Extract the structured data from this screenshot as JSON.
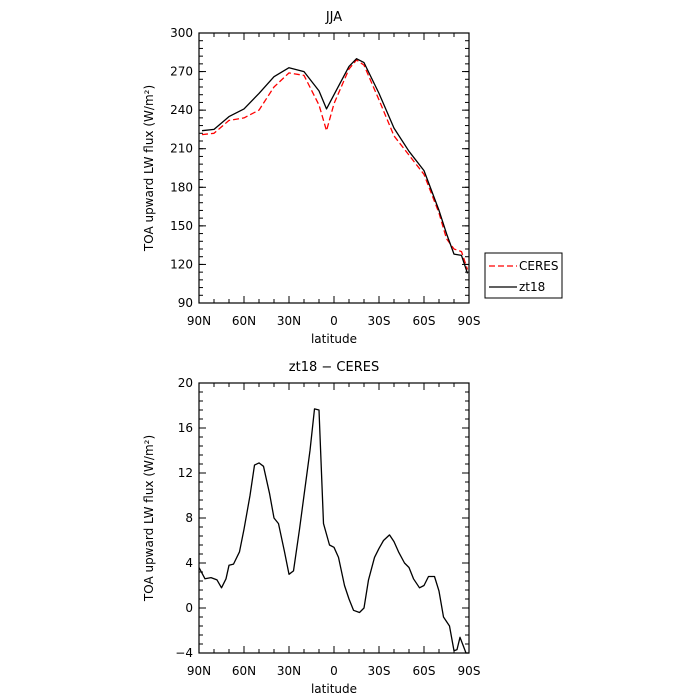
{
  "chart_data": [
    {
      "type": "line",
      "title": "JJA",
      "xlabel": "latitude",
      "ylabel": "TOA upward LW flux (W/m²)",
      "xlim": [
        90,
        -90
      ],
      "ylim": [
        90,
        300
      ],
      "x_ticks": [
        90,
        60,
        30,
        0,
        -30,
        -60,
        -90
      ],
      "x_tick_labels": [
        "90N",
        "60N",
        "30N",
        "0",
        "30S",
        "60S",
        "90S"
      ],
      "y_ticks": [
        90,
        120,
        150,
        180,
        210,
        240,
        270,
        300
      ],
      "y_tick_labels": [
        "90",
        "120",
        "150",
        "180",
        "210",
        "240",
        "270",
        "300"
      ],
      "grid": false,
      "legend": "right, outside plot",
      "series": [
        {
          "name": "CERES",
          "color": "#ff0000",
          "style": "dashed",
          "x": [
            88,
            80,
            70,
            60,
            50,
            40,
            30,
            20,
            10,
            5,
            0,
            -10,
            -15,
            -20,
            -30,
            -40,
            -50,
            -60,
            -70,
            -75,
            -80,
            -85,
            -89
          ],
          "y": [
            221,
            222,
            232,
            234,
            240,
            258,
            269,
            267,
            244,
            224,
            245,
            272,
            279,
            275,
            248,
            220,
            205,
            190,
            160,
            140,
            132,
            130,
            116
          ]
        },
        {
          "name": "zt18",
          "color": "#000000",
          "style": "solid",
          "x": [
            88,
            80,
            70,
            60,
            50,
            40,
            30,
            20,
            10,
            5,
            0,
            -10,
            -15,
            -20,
            -30,
            -40,
            -50,
            -60,
            -70,
            -75,
            -80,
            -85,
            -89
          ],
          "y": [
            224,
            225,
            235,
            241,
            253,
            266,
            273,
            270,
            255,
            241,
            252,
            274,
            280,
            277,
            253,
            226,
            208,
            193,
            162,
            144,
            128,
            127,
            113
          ]
        }
      ]
    },
    {
      "type": "line",
      "title": "zt18 − CERES",
      "xlabel": "latitude",
      "ylabel": "TOA upward LW flux (W/m²)",
      "xlim": [
        90,
        -90
      ],
      "ylim": [
        -4,
        20
      ],
      "x_ticks": [
        90,
        60,
        30,
        0,
        -30,
        -60,
        -90
      ],
      "x_tick_labels": [
        "90N",
        "60N",
        "30N",
        "0",
        "30S",
        "60S",
        "90S"
      ],
      "y_ticks": [
        -4,
        0,
        4,
        8,
        12,
        16,
        20
      ],
      "y_tick_labels": [
        "−4",
        "0",
        "4",
        "8",
        "12",
        "16",
        "20"
      ],
      "grid": false,
      "series": [
        {
          "name": "",
          "color": "#000000",
          "style": "solid",
          "x": [
            90,
            86,
            82,
            78,
            75,
            72,
            70,
            67,
            63,
            60,
            56,
            53,
            50,
            47,
            43,
            40,
            37,
            33,
            30,
            27,
            23,
            20,
            16,
            13,
            10,
            7,
            3,
            0,
            -3,
            -7,
            -10,
            -13,
            -17,
            -20,
            -23,
            -27,
            -30,
            -33,
            -37,
            -40,
            -43,
            -47,
            -50,
            -53,
            -57,
            -60,
            -63,
            -67,
            -70,
            -73,
            -77,
            -80,
            -82,
            -84,
            -86,
            -88,
            -90
          ],
          "y": [
            3.6,
            2.6,
            2.7,
            2.5,
            1.8,
            2.6,
            3.8,
            3.9,
            5.0,
            7.0,
            10.0,
            12.7,
            12.9,
            12.6,
            10.2,
            8.0,
            7.5,
            5.0,
            3.0,
            3.3,
            7.0,
            10.0,
            14.0,
            17.7,
            17.6,
            7.5,
            5.6,
            5.4,
            4.5,
            2.0,
            0.8,
            -0.2,
            -0.4,
            0.0,
            2.5,
            4.5,
            5.3,
            6.0,
            6.5,
            5.9,
            5.0,
            4.0,
            3.6,
            2.6,
            1.8,
            2.0,
            2.8,
            2.8,
            1.5,
            -0.8,
            -1.6,
            -3.8,
            -3.7,
            -2.6,
            -3.3,
            -4.0,
            -4.0
          ]
        }
      ]
    }
  ]
}
